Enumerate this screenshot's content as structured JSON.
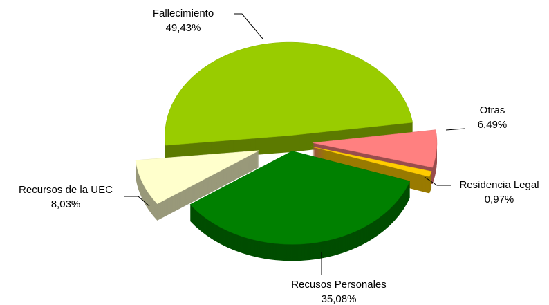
{
  "chart_data": {
    "type": "pie3d",
    "categories": [
      "Fallecimiento",
      "Otras",
      "Residencia Legal",
      "Recusos Personales",
      "Recursos de la UEC"
    ],
    "values": [
      49.43,
      6.49,
      0.97,
      35.08,
      8.03
    ],
    "value_labels": [
      "49,43%",
      "6,49%",
      "0,97%",
      "35,08%",
      "8,03%"
    ],
    "colors": [
      "#99cc00",
      "#ff8080",
      "#ffcc00",
      "#008000",
      "#ffffcc"
    ]
  }
}
